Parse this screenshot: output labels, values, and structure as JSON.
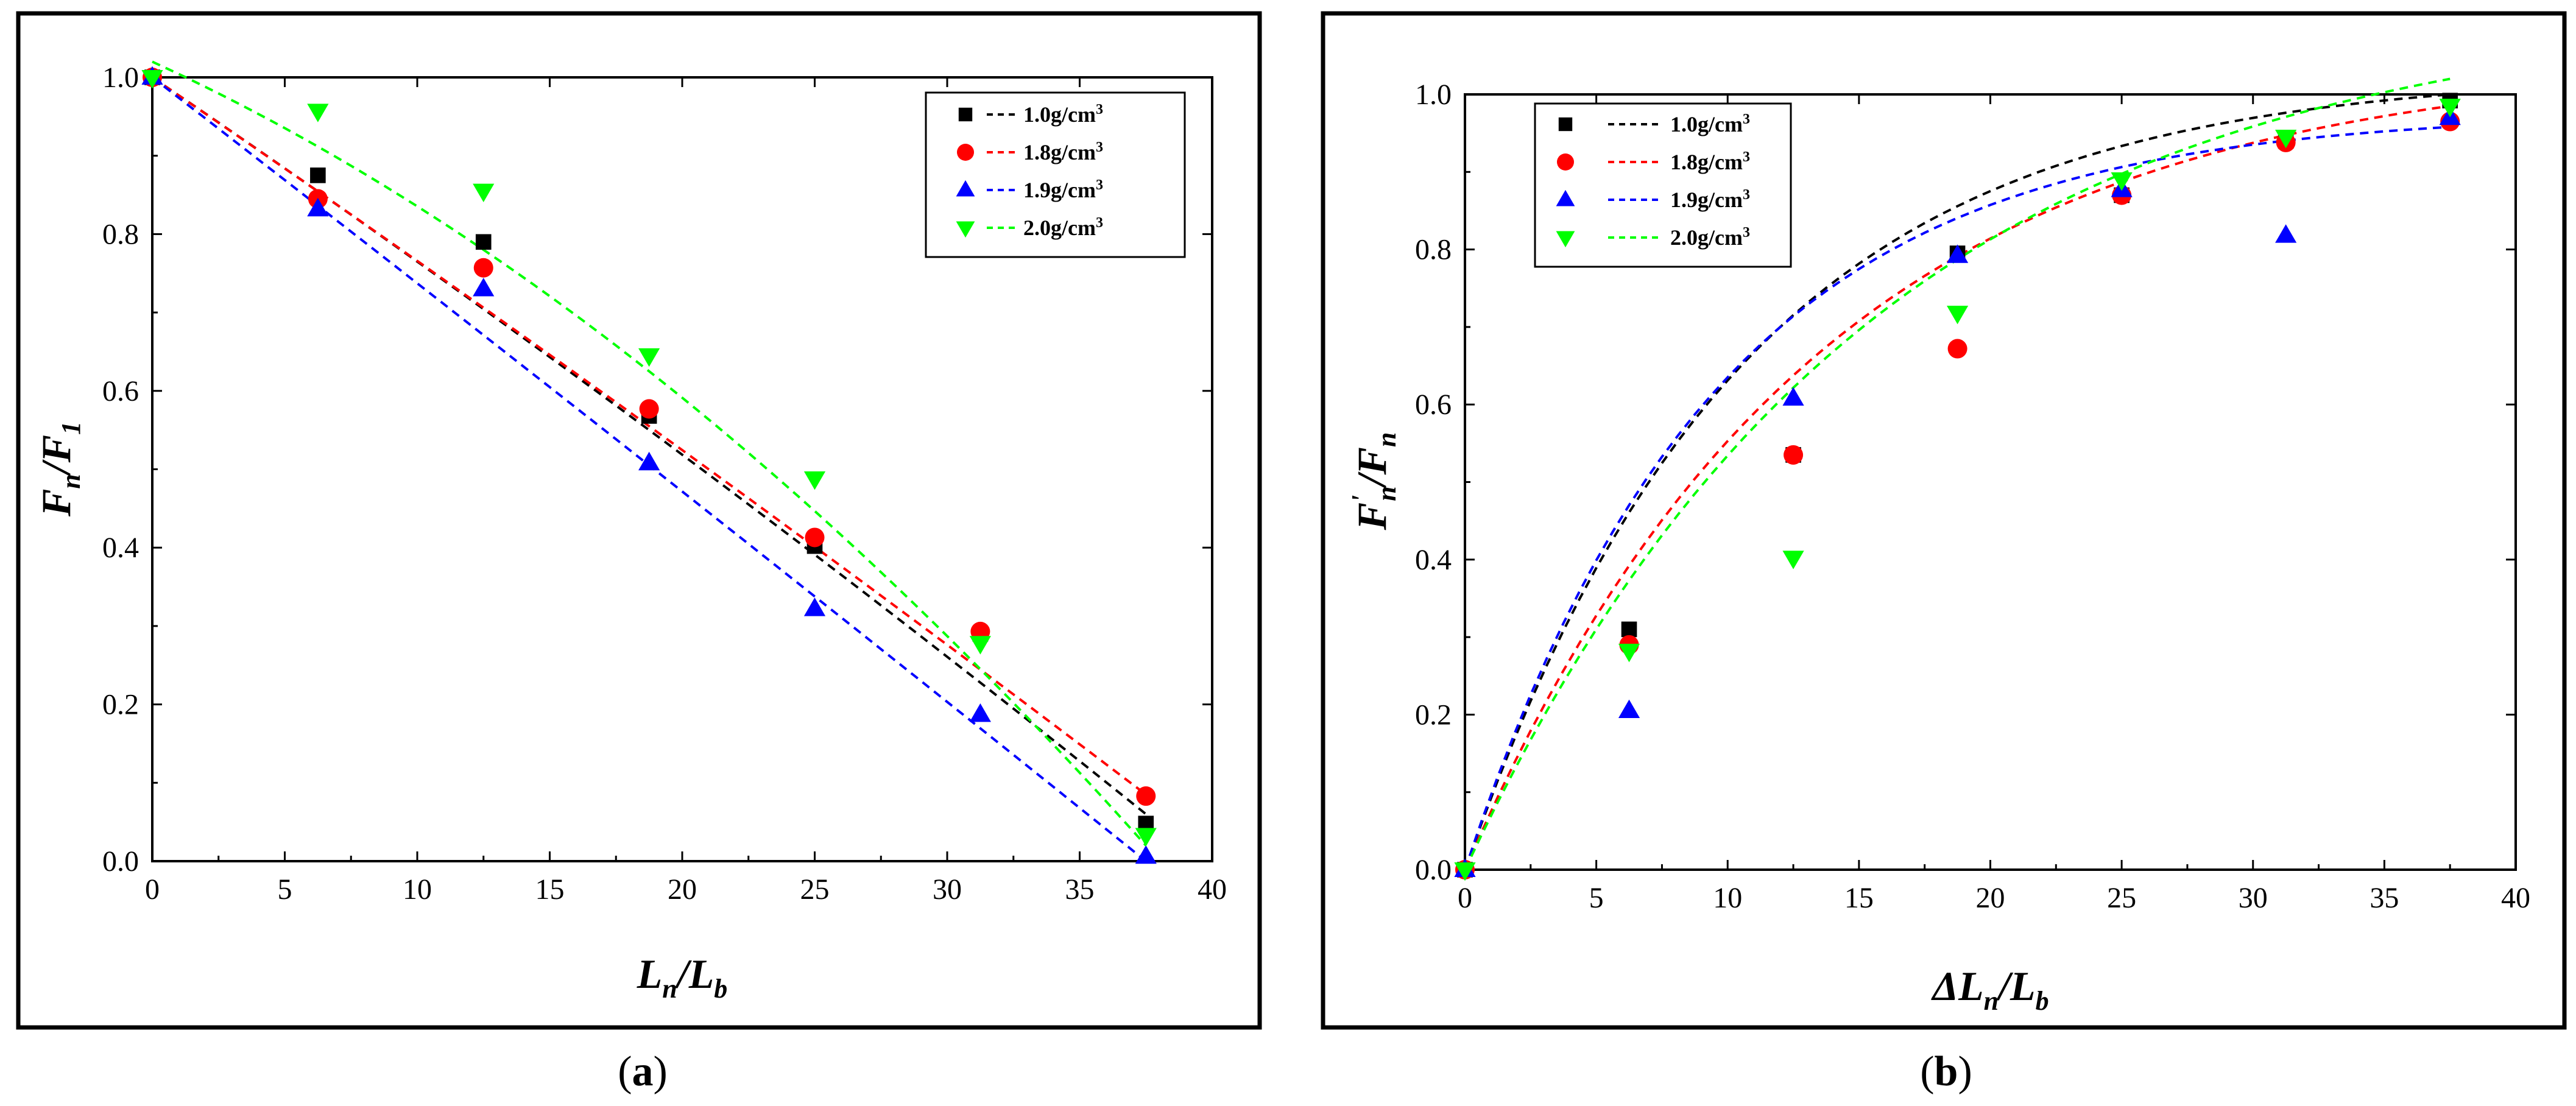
{
  "chart_data": [
    {
      "type": "scatter",
      "panel_label": "a",
      "xlabel": {
        "main": "L",
        "sub1": "n",
        "sep": "/",
        "main2": "L",
        "sub2": "b"
      },
      "ylabel": {
        "main": "F",
        "sub1": "n",
        "sep": "/",
        "main2": "F",
        "sub2": "1"
      },
      "xlim": [
        0,
        40
      ],
      "ylim": [
        0,
        1.0
      ],
      "xticks": [
        0,
        5,
        10,
        15,
        20,
        25,
        30,
        35,
        40
      ],
      "yticks": [
        0.0,
        0.2,
        0.4,
        0.6,
        0.8,
        1.0
      ],
      "ytick_labels": [
        "0.0",
        "0.2",
        "0.4",
        "0.6",
        "0.8",
        "1.0"
      ],
      "legend_position": "top-right",
      "grid": false,
      "series": [
        {
          "name": "1.0",
          "unit_base": "g/cm",
          "unit_exp": "3",
          "color": "#000000",
          "marker": "square",
          "x": [
            0,
            6.25,
            12.5,
            18.75,
            25,
            31.25,
            37.5
          ],
          "y": [
            1.0,
            0.875,
            0.79,
            0.568,
            0.402,
            0.29,
            0.048
          ],
          "fit_x": [
            0,
            37.5
          ],
          "fit_y": [
            1.0,
            0.06
          ],
          "fit_curve": 0.08
        },
        {
          "name": "1.8",
          "unit_base": "g/cm",
          "unit_exp": "3",
          "color": "#ff0000",
          "marker": "circle",
          "x": [
            0,
            6.25,
            12.5,
            18.75,
            25,
            31.25,
            37.5
          ],
          "y": [
            1.0,
            0.845,
            0.757,
            0.577,
            0.413,
            0.293,
            0.083
          ],
          "fit_x": [
            0,
            37.5
          ],
          "fit_y": [
            1.0,
            0.085
          ],
          "fit_curve": 0.05
        },
        {
          "name": "1.9",
          "unit_base": "g/cm",
          "unit_exp": "3",
          "color": "#0000ff",
          "marker": "triangle-up",
          "x": [
            0,
            6.25,
            12.5,
            18.75,
            25,
            31.25,
            37.5
          ],
          "y": [
            1.0,
            0.832,
            0.73,
            0.508,
            0.322,
            0.187,
            0.006
          ],
          "fit_x": [
            0,
            37.5
          ],
          "fit_y": [
            1.0,
            0.0
          ],
          "fit_curve": 0.02
        },
        {
          "name": "2.0",
          "unit_base": "g/cm",
          "unit_exp": "3",
          "color": "#00ff00",
          "marker": "triangle-down",
          "x": [
            0,
            6.25,
            12.5,
            18.75,
            25,
            31.25,
            37.5
          ],
          "y": [
            1.0,
            0.957,
            0.855,
            0.645,
            0.488,
            0.278,
            0.033
          ],
          "fit_x": [
            0,
            37.5
          ],
          "fit_y": [
            1.02,
            0.02
          ],
          "fit_curve": 0.42
        }
      ]
    },
    {
      "type": "scatter",
      "panel_label": "b",
      "xlabel": {
        "prefix": "Δ",
        "main": "L",
        "sub1": "n",
        "sep": "/",
        "main2": "L",
        "sub2": "b"
      },
      "ylabel": {
        "main": "F",
        "prime": "'",
        "sub1": "n",
        "sep": "/",
        "main2": "F",
        "sub2": "n"
      },
      "xlim": [
        0,
        40
      ],
      "ylim": [
        0,
        1.0
      ],
      "xticks": [
        0,
        5,
        10,
        15,
        20,
        25,
        30,
        35,
        40
      ],
      "yticks": [
        0.0,
        0.2,
        0.4,
        0.6,
        0.8,
        1.0
      ],
      "ytick_labels": [
        "0.0",
        "0.2",
        "0.4",
        "0.6",
        "0.8",
        "1.0"
      ],
      "legend_position": "top-left",
      "grid": false,
      "series": [
        {
          "name": "1.0",
          "unit_base": "g/cm",
          "unit_exp": "3",
          "color": "#000000",
          "marker": "square",
          "x": [
            0,
            6.25,
            12.5,
            18.75,
            25,
            31.25,
            37.5
          ],
          "y": [
            0,
            0.31,
            0.535,
            0.795,
            0.87,
            0.94,
            0.992
          ],
          "fit_x": [
            0,
            37.5
          ],
          "fit_y": [
            0,
            1.0
          ],
          "fit_k": 0.095
        },
        {
          "name": "1.8",
          "unit_base": "g/cm",
          "unit_exp": "3",
          "color": "#ff0000",
          "marker": "circle",
          "x": [
            0,
            6.25,
            12.5,
            18.75,
            25,
            31.25,
            37.5
          ],
          "y": [
            0,
            0.29,
            0.535,
            0.672,
            0.87,
            0.938,
            0.965
          ],
          "fit_x": [
            0,
            37.5
          ],
          "fit_y": [
            0,
            0.985
          ],
          "fit_k": 0.075
        },
        {
          "name": "1.9",
          "unit_base": "g/cm",
          "unit_exp": "3",
          "color": "#0000ff",
          "marker": "triangle-up",
          "x": [
            0,
            6.25,
            12.5,
            18.75,
            25,
            31.25,
            37.5
          ],
          "y": [
            0,
            0.205,
            0.608,
            0.792,
            0.877,
            0.818,
            0.97
          ],
          "fit_x": [
            0,
            37.5
          ],
          "fit_y": [
            0,
            0.958
          ],
          "fit_k": 0.105
        },
        {
          "name": "2.0",
          "unit_base": "g/cm",
          "unit_exp": "3",
          "color": "#00ff00",
          "marker": "triangle-down",
          "x": [
            0,
            6.25,
            12.5,
            18.75,
            25,
            31.25,
            37.5
          ],
          "y": [
            0,
            0.282,
            0.402,
            0.718,
            0.89,
            0.945,
            0.985
          ],
          "fit_x": [
            0,
            37.5
          ],
          "fit_y": [
            0,
            1.02
          ],
          "fit_k": 0.065
        }
      ]
    }
  ]
}
